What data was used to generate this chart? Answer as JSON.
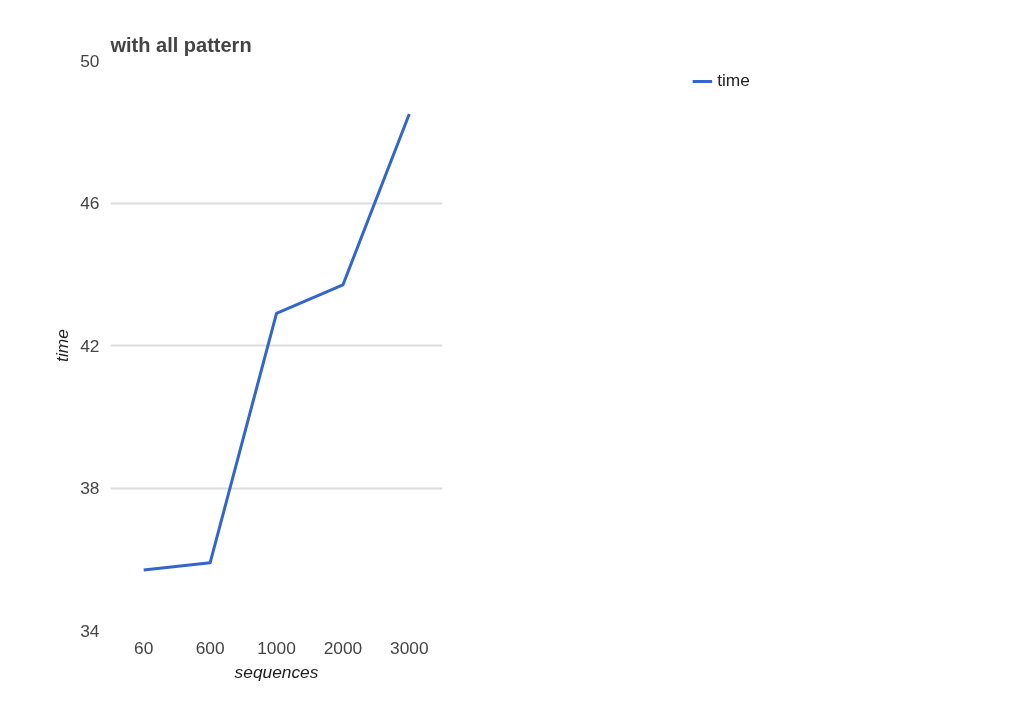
{
  "chart_data": {
    "type": "line",
    "title": "with all pattern",
    "xlabel": "sequences",
    "ylabel": "time",
    "categories": [
      "60",
      "600",
      "1000",
      "2000",
      "3000"
    ],
    "series": [
      {
        "name": "time",
        "color": "#3366cc",
        "values": [
          35.7,
          35.9,
          42.9,
          43.7,
          48.5
        ]
      }
    ],
    "ylim": [
      34,
      50
    ],
    "yticks": [
      34,
      38,
      42,
      46,
      50
    ],
    "grid": "y",
    "legend": "top right"
  }
}
